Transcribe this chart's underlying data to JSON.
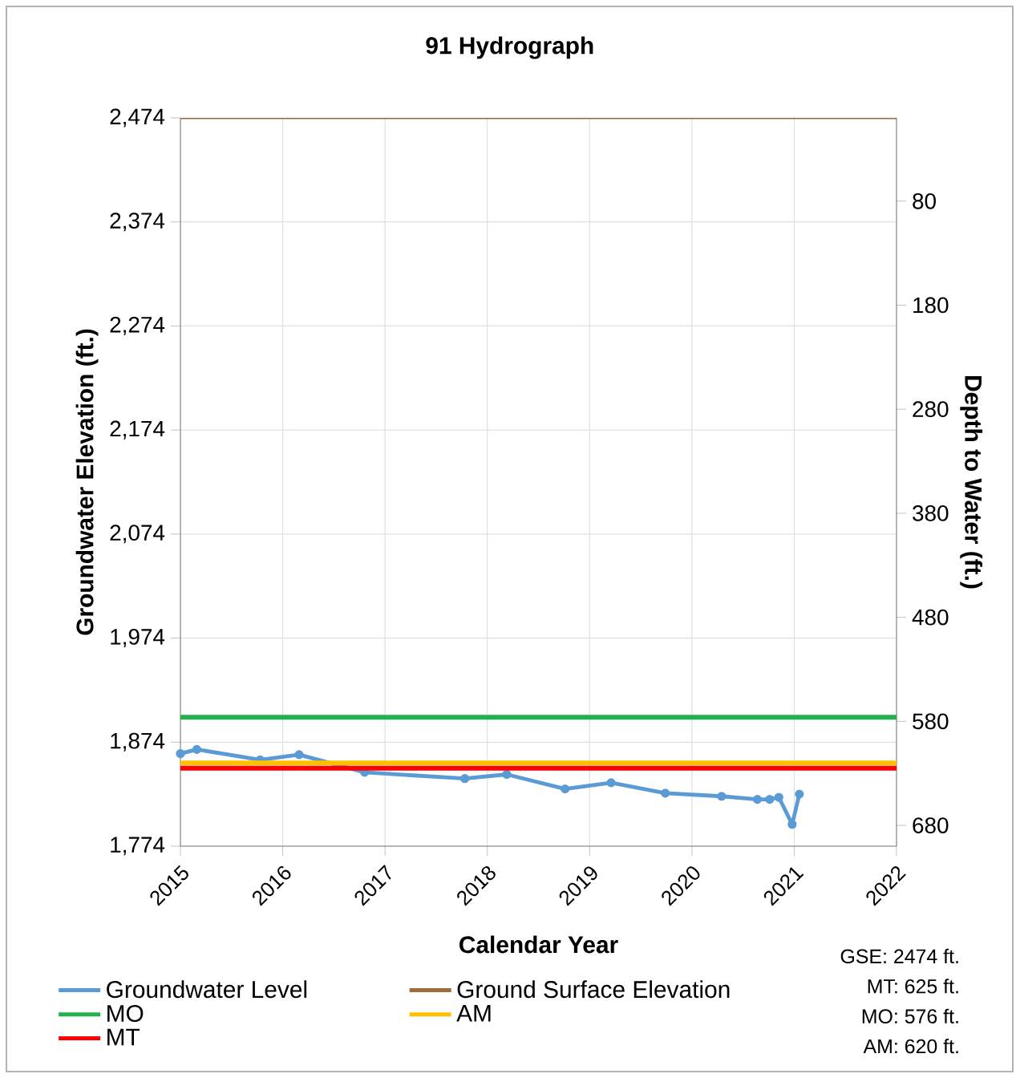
{
  "chart_data": {
    "type": "line",
    "title": "91 Hydrograph",
    "xlabel": "Calendar Year",
    "ylabel": "Groundwater Elevation (ft.)",
    "y2label": "Depth to Water (ft.)",
    "xlim": [
      2015,
      2022
    ],
    "xticks": [
      2015,
      2016,
      2017,
      2018,
      2019,
      2020,
      2021,
      2022
    ],
    "ylim": [
      1774,
      2474
    ],
    "yticks": [
      {
        "value": 1774,
        "label": "1,774"
      },
      {
        "value": 1874,
        "label": "1,874"
      },
      {
        "value": 1974,
        "label": "1,974"
      },
      {
        "value": 2074,
        "label": "2,074"
      },
      {
        "value": 2174,
        "label": "2,174"
      },
      {
        "value": 2274,
        "label": "2,274"
      },
      {
        "value": 2374,
        "label": "2,374"
      },
      {
        "value": 2474,
        "label": "2,474"
      }
    ],
    "y2lim": [
      700,
      0
    ],
    "y2ticks": [
      80,
      180,
      280,
      380,
      480,
      580,
      680
    ],
    "grid": true,
    "legend": "bottom",
    "series": [
      {
        "name": "Groundwater Level",
        "color": "#5b9bd5",
        "marker": "circle",
        "x": [
          2015.0,
          2015.16,
          2015.78,
          2016.16,
          2016.8,
          2017.16,
          2017.78,
          2018.19,
          2018.76,
          2019.21,
          2019.74,
          2020.29,
          2020.64,
          2020.76,
          2020.85,
          2020.98,
          2021.05
        ],
        "values": [
          1863,
          1867,
          1857,
          1862,
          1845,
          null,
          1839,
          1843,
          1829,
          1835,
          1825,
          1822,
          1819,
          1819,
          1821,
          1795,
          1824
        ]
      },
      {
        "name": "Ground Surface Elevation",
        "color": "#9e6b3a",
        "x": [
          2015,
          2022
        ],
        "values": [
          2474,
          2474
        ]
      },
      {
        "name": "MO",
        "color": "#22b14c",
        "axis": "y2",
        "x": [
          2015,
          2022
        ],
        "values": [
          576,
          576
        ]
      },
      {
        "name": "AM",
        "color": "#ffc000",
        "axis": "y2",
        "x": [
          2015,
          2022
        ],
        "values": [
          620,
          620
        ]
      },
      {
        "name": "MT",
        "color": "#ff0000",
        "axis": "y2",
        "x": [
          2015,
          2022
        ],
        "values": [
          625,
          625
        ]
      }
    ],
    "annotations": [
      "GSE: 2474 ft.",
      "MT: 625 ft.",
      "MO: 576 ft.",
      "AM: 620 ft."
    ]
  }
}
